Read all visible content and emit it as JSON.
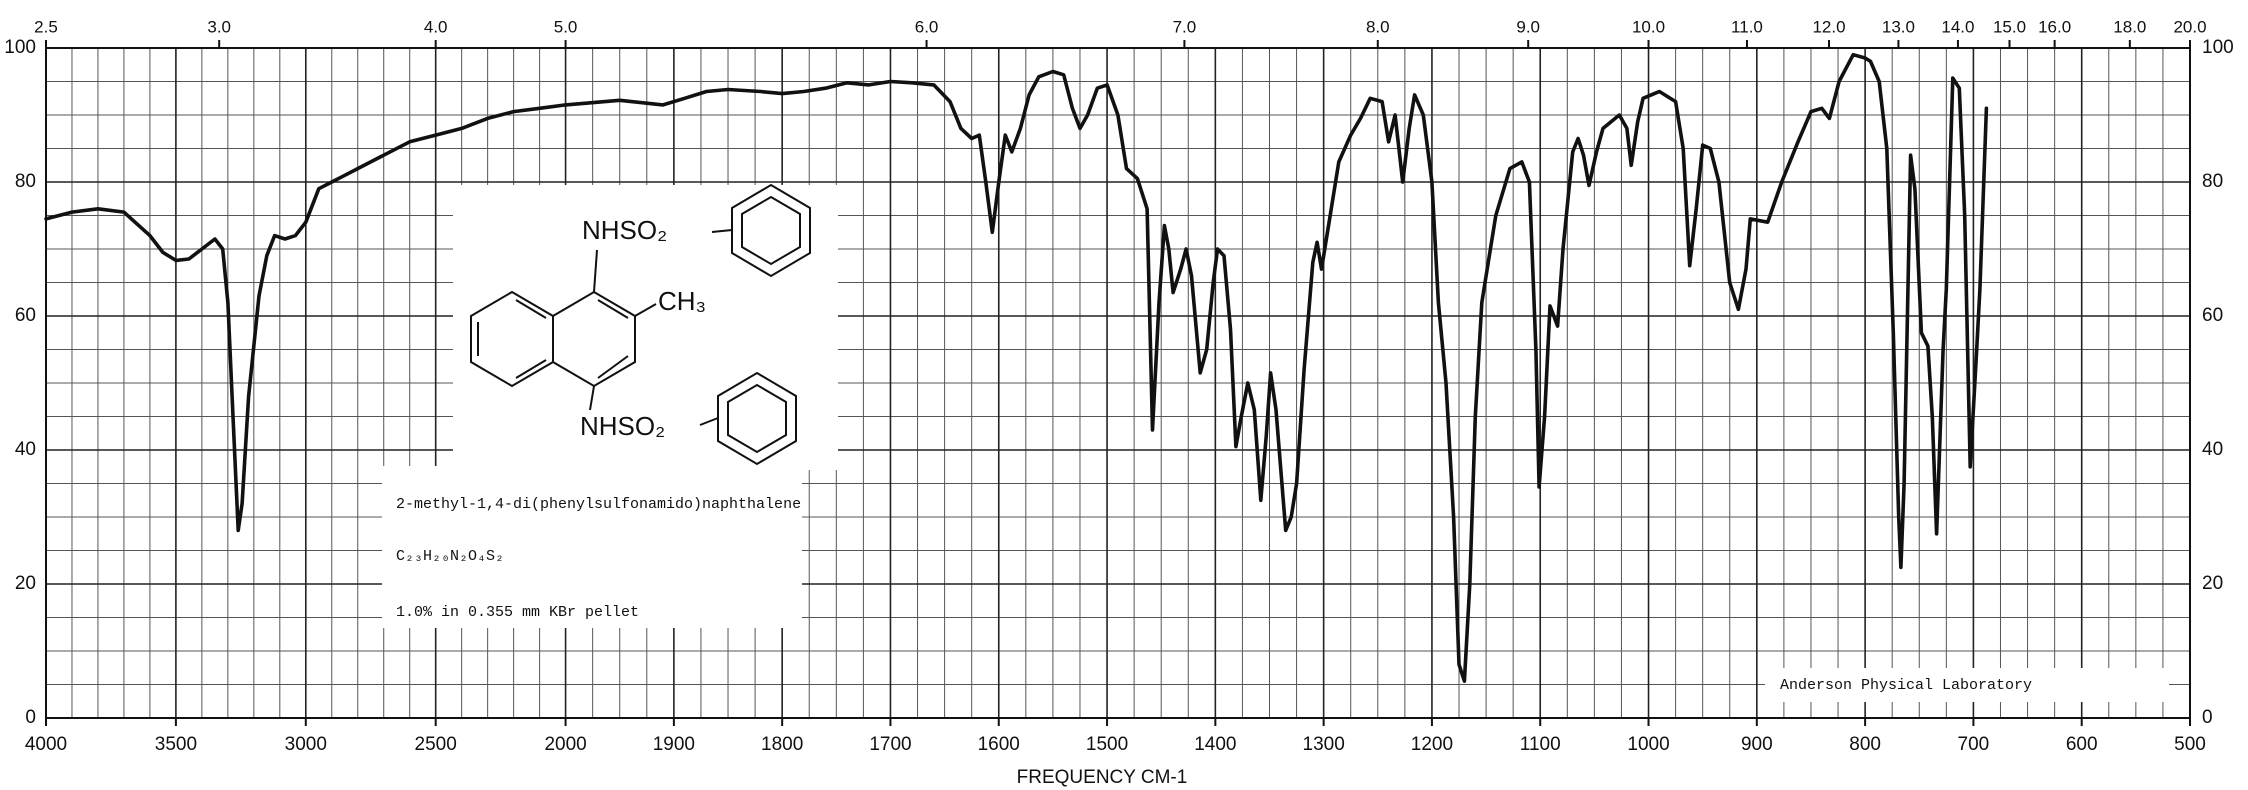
{
  "chart_data": {
    "type": "line",
    "xlabel": "FREQUENCY   CM-1",
    "annotations": {
      "compound": "2-methyl-1,4-di(phenylsulfonamido)naphthalene",
      "formula": "C₂₃H₂₀N₂O₄S₂",
      "sample": "1.0% in 0.355 mm  KBr pellet",
      "lab": "Anderson Physical Laboratory",
      "structure_labels": [
        "NHSO₂",
        "CH₃",
        "NHSO₂"
      ]
    },
    "color": "#111111",
    "grid": true,
    "xlim": [
      4000,
      500
    ],
    "xticks": [
      4000,
      3500,
      3000,
      2500,
      2000,
      1900,
      1800,
      1700,
      1600,
      1500,
      1400,
      1300,
      1200,
      1100,
      1000,
      900,
      800,
      700,
      600,
      500
    ],
    "x2ticks": [
      2.5,
      {
        "value": 3,
        "label": "3.0"
      },
      {
        "value": 4,
        "label": "4.0"
      },
      {
        "value": 5,
        "label": "5.0"
      },
      {
        "value": 6,
        "label": "6.0"
      },
      {
        "value": 7,
        "label": "7.0"
      },
      {
        "value": 8,
        "label": "8.0"
      },
      {
        "value": 9,
        "label": "9.0"
      },
      {
        "value": 10,
        "label": "10.0"
      },
      {
        "value": 11,
        "label": "11.0"
      },
      {
        "value": 12,
        "label": "12.0"
      },
      {
        "value": 13,
        "label": "13.0"
      },
      {
        "value": 14,
        "label": "14.0"
      },
      {
        "value": 15,
        "label": "15.0"
      },
      {
        "value": 16,
        "label": "16.0"
      },
      {
        "value": 18,
        "label": "18.0"
      },
      {
        "value": 20,
        "label": "20.0"
      }
    ],
    "ylim": [
      0,
      100
    ],
    "yticks": [
      0,
      20,
      40,
      60,
      80,
      100
    ],
    "x": [
      4000,
      3900,
      3800,
      3700,
      3600,
      3550,
      3500,
      3450,
      3400,
      3350,
      3320,
      3300,
      3280,
      3260,
      3245,
      3220,
      3180,
      3150,
      3120,
      3080,
      3040,
      3000,
      2980,
      2950,
      2900,
      2850,
      2800,
      2700,
      2600,
      2500,
      2400,
      2300,
      2200,
      2100,
      2000,
      1950,
      1910,
      1890,
      1870,
      1850,
      1820,
      1800,
      1780,
      1760,
      1740,
      1720,
      1700,
      1680,
      1660,
      1645,
      1635,
      1625,
      1618,
      1612,
      1606,
      1600,
      1594,
      1588,
      1580,
      1572,
      1563,
      1550,
      1540,
      1532,
      1525,
      1518,
      1509,
      1500,
      1490,
      1482,
      1472,
      1463,
      1458,
      1452,
      1447,
      1443,
      1439,
      1432,
      1427,
      1422,
      1414,
      1408,
      1402,
      1398,
      1392,
      1386,
      1381,
      1376,
      1370,
      1364,
      1358,
      1353,
      1349,
      1344,
      1340,
      1335,
      1330,
      1325,
      1318,
      1310,
      1306,
      1302,
      1295,
      1286,
      1275,
      1266,
      1257,
      1246,
      1240,
      1234,
      1227,
      1221,
      1216,
      1208,
      1200,
      1194,
      1187,
      1180,
      1175,
      1170,
      1165,
      1160,
      1154,
      1141,
      1128,
      1117,
      1110,
      1104,
      1101,
      1096,
      1091,
      1084,
      1079,
      1070,
      1065,
      1060,
      1055,
      1048,
      1042,
      1027,
      1020,
      1016,
      1010,
      1005,
      990,
      975,
      968,
      962,
      956,
      950,
      943,
      935,
      925,
      917,
      910,
      906,
      890,
      877,
      862,
      850,
      840,
      833,
      824,
      811,
      800,
      795,
      787,
      780,
      774,
      769,
      767,
      764,
      758,
      754,
      748,
      742,
      738,
      734,
      728,
      725,
      719,
      713,
      708,
      703,
      697,
      694,
      688
    ],
    "values": [
      74.5,
      75.5,
      76,
      75.5,
      72,
      69.5,
      68.3,
      68.5,
      70,
      71.5,
      70,
      62,
      45,
      28,
      32,
      48,
      63,
      69,
      72,
      71.5,
      72,
      74,
      76,
      79,
      80,
      81,
      82,
      84,
      86,
      87,
      88,
      89.5,
      90.5,
      91,
      91.5,
      92.2,
      91.5,
      92.5,
      93.5,
      93.8,
      93.5,
      93.2,
      93.5,
      94,
      94.8,
      94.5,
      95,
      94.8,
      94.5,
      92,
      88,
      86.5,
      87,
      80,
      72.5,
      80,
      87,
      84.5,
      88,
      93,
      95.7,
      96.5,
      96,
      91,
      88,
      90,
      94,
      94.5,
      90,
      82,
      80.5,
      76,
      43,
      62,
      73.5,
      70,
      63.5,
      67,
      70,
      66,
      51.5,
      55,
      65,
      70,
      69,
      58,
      40.5,
      45,
      50,
      46,
      32.5,
      42,
      51.5,
      46,
      38,
      28,
      30,
      35,
      52,
      68,
      71,
      67,
      74,
      83,
      87,
      89.5,
      92.5,
      92,
      86,
      90,
      80,
      88,
      93,
      90,
      80,
      62,
      50,
      30,
      8,
      5.5,
      20,
      45,
      62,
      75,
      82,
      83,
      80,
      55,
      34.5,
      45,
      61.5,
      58.5,
      70,
      84.5,
      86.5,
      84,
      79.5,
      84.5,
      88,
      90,
      88,
      82.5,
      89,
      92.5,
      93.5,
      92,
      85,
      67.5,
      76,
      85.5,
      85,
      80,
      65,
      61,
      67,
      74.5,
      74,
      80,
      86,
      90.5,
      91,
      89.5,
      95,
      99,
      98.5,
      98,
      95,
      85,
      57.5,
      30,
      22.5,
      35,
      84,
      79,
      57.5,
      55.5,
      45,
      27.5,
      55,
      64,
      95.5,
      94,
      75,
      37.5,
      55,
      64,
      91
    ]
  }
}
